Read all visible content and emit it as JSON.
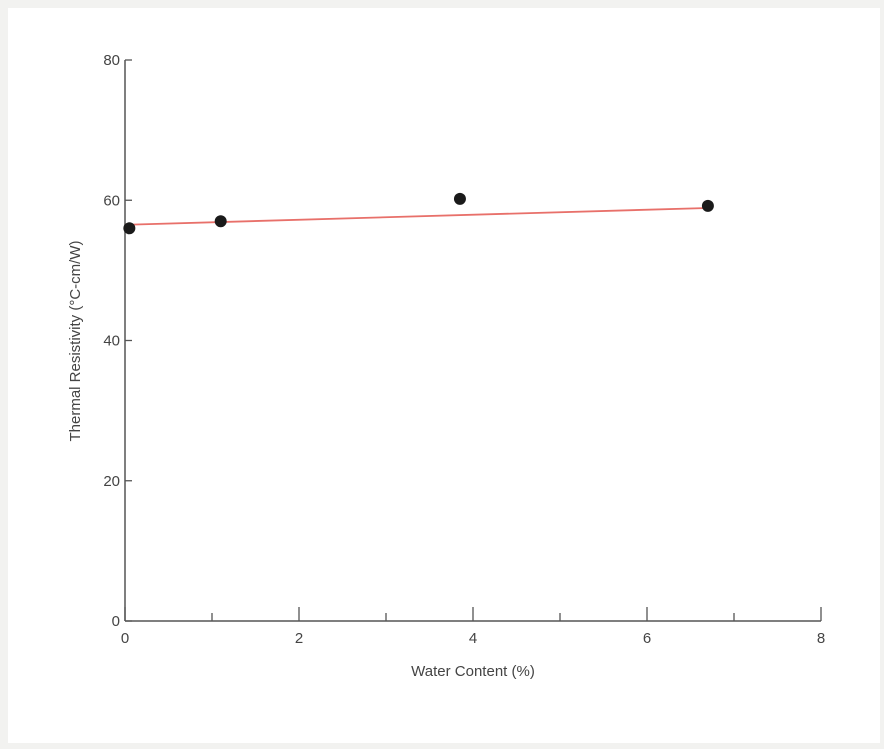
{
  "chart_data": {
    "type": "scatter",
    "title": "",
    "xlabel": "Water Content (%)",
    "ylabel": "Thermal Resistivity (°C-cm/W)",
    "xlim": [
      0,
      8
    ],
    "ylim": [
      0,
      80
    ],
    "x_ticks": [
      0,
      2,
      4,
      6,
      8
    ],
    "x_tick_labels": [
      "0",
      "2",
      "4",
      "6",
      "8"
    ],
    "x_minor_ticks": [
      1,
      3,
      5,
      7
    ],
    "y_ticks": [
      0,
      20,
      40,
      60,
      80
    ],
    "y_tick_labels": [
      "0",
      "20",
      "40",
      "60",
      "80"
    ],
    "grid": false,
    "legend": "none",
    "series": [
      {
        "points": [
          {
            "x": 0.05,
            "y": 56
          },
          {
            "x": 1.1,
            "y": 57
          },
          {
            "x": 3.85,
            "y": 60.2
          },
          {
            "x": 6.7,
            "y": 59.2
          }
        ],
        "color": "#1a1a1a"
      }
    ],
    "trend_line": {
      "x": [
        0,
        6.7
      ],
      "y": [
        56.5,
        58.9
      ],
      "color": "#e8706a"
    }
  }
}
